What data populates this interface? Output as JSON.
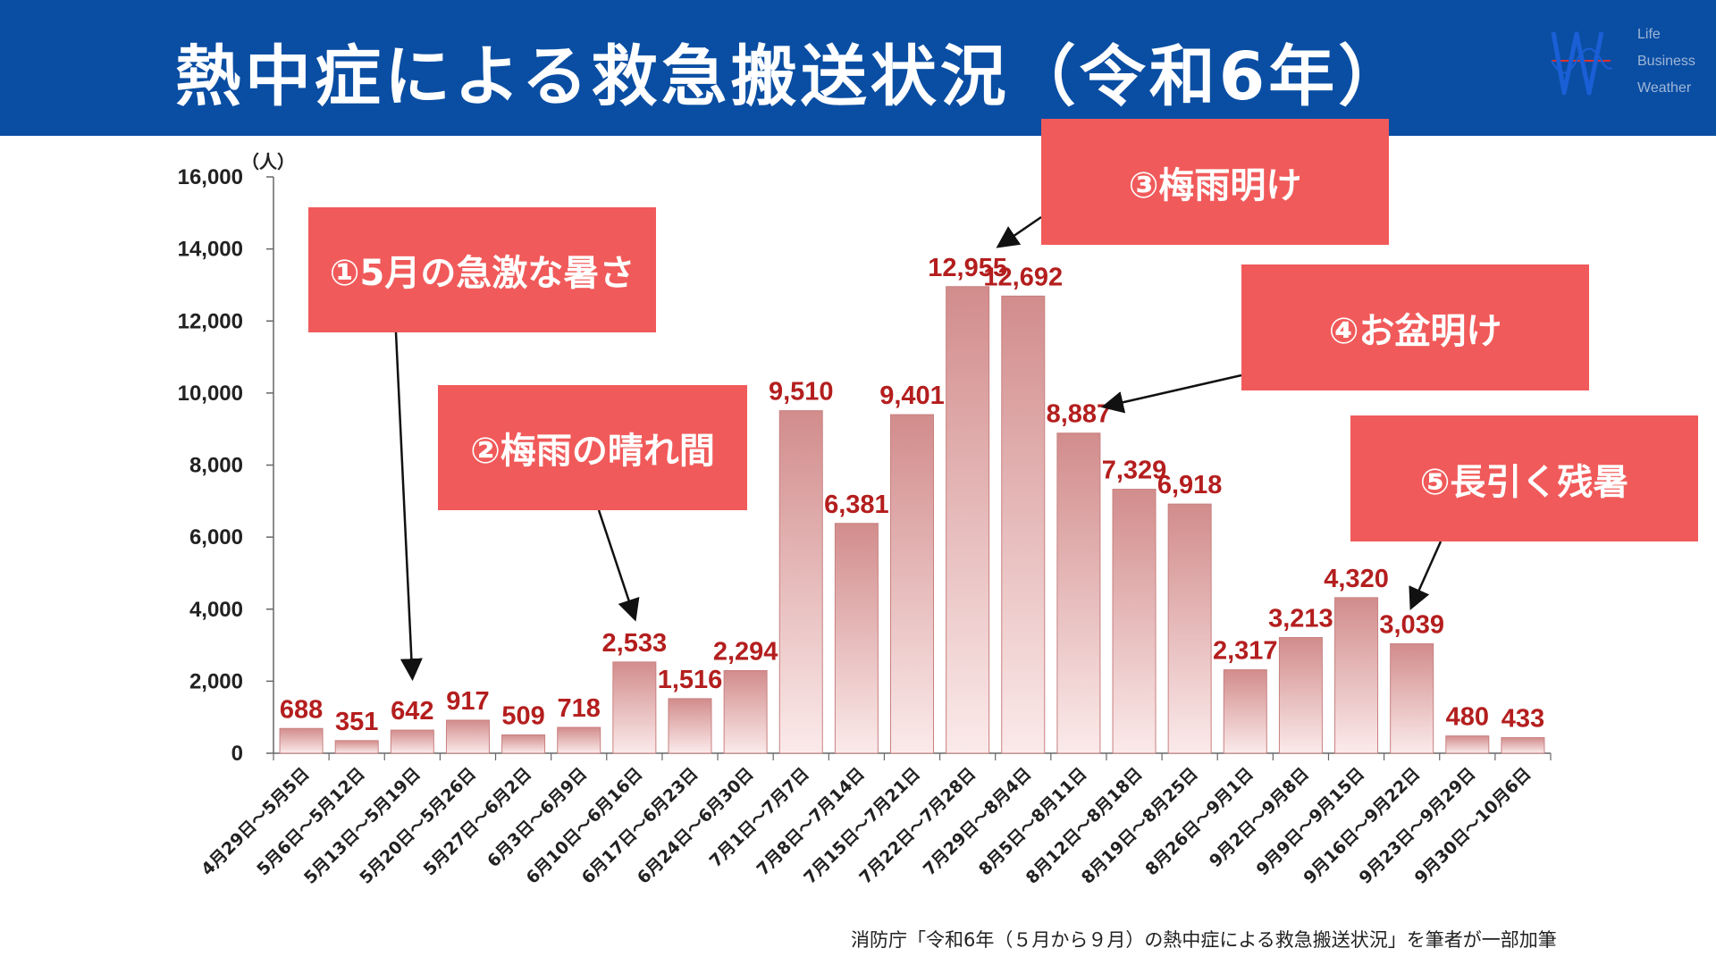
{
  "title": "熱中症による救急搬送状況（令和6年）",
  "logo": {
    "lines": [
      "Life",
      "Business",
      "Weather"
    ],
    "mark_color": "#1a5fd6",
    "line_color": "#e03030"
  },
  "colors": {
    "header": "#0a4ea3",
    "callout": "#f15a5a",
    "value_label": "#b41e1e",
    "bar_top": "#d28c8c",
    "bar_bottom": "#fbeaea"
  },
  "callouts": [
    {
      "id": "c1",
      "text": "①5月の急激な暑さ"
    },
    {
      "id": "c2",
      "text": "②梅雨の晴れ間"
    },
    {
      "id": "c3",
      "text": "③梅雨明け"
    },
    {
      "id": "c4",
      "text": "④お盆明け"
    },
    {
      "id": "c5",
      "text": "⑤長引く残暑"
    }
  ],
  "source": "消防庁「令和6年（５月から９月）の熱中症による救急搬送状況」を筆者が一部加筆",
  "chart_data": {
    "type": "bar",
    "unit_label": "（人）",
    "categories": [
      "4月29日～5月5日",
      "5月6日～5月12日",
      "5月13日～5月19日",
      "5月20日～5月26日",
      "5月27日～6月2日",
      "6月3日～6月9日",
      "6月10日～6月16日",
      "6月17日～6月23日",
      "6月24日～6月30日",
      "7月1日～7月7日",
      "7月8日～7月14日",
      "7月15日～7月21日",
      "7月22日～7月28日",
      "7月29日～8月4日",
      "8月5日～8月11日",
      "8月12日～8月18日",
      "8月19日～8月25日",
      "8月26日～9月1日",
      "9月2日～9月8日",
      "9月9日～9月15日",
      "9月16日～9月22日",
      "9月23日～9月29日",
      "9月30日～10月6日"
    ],
    "values": [
      688,
      351,
      642,
      917,
      509,
      718,
      2533,
      1516,
      2294,
      9510,
      6381,
      9401,
      12955,
      12692,
      8887,
      7329,
      6918,
      2317,
      3213,
      4320,
      3039,
      480,
      433
    ],
    "value_labels": [
      "688",
      "351",
      "642",
      "917",
      "509",
      "718",
      "2,533",
      "1,516",
      "2,294",
      "9,510",
      "6,381",
      "9,401",
      "12,955",
      "12,692",
      "8,887",
      "7,329",
      "6,918",
      "2,317",
      "3,213",
      "4,320",
      "3,039",
      "480",
      "433"
    ],
    "yticks": [
      "0",
      "2,000",
      "4,000",
      "6,000",
      "8,000",
      "10,000",
      "12,000",
      "14,000",
      "16,000"
    ],
    "ylim": [
      0,
      16000
    ],
    "grid": false
  }
}
